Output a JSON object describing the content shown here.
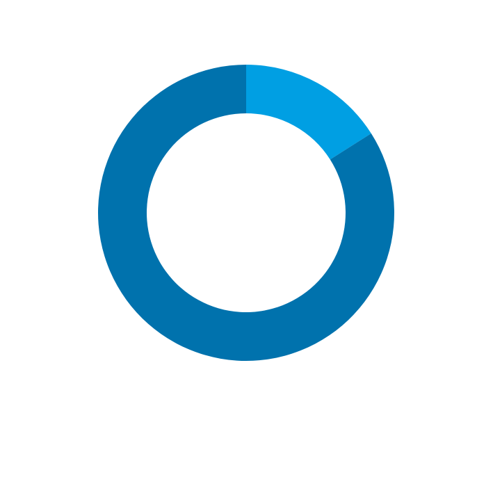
{
  "chart_data": {
    "type": "pie",
    "variant": "donut",
    "title": "",
    "legend": "none",
    "series": [
      {
        "value": 16,
        "color": "#009FE3"
      },
      {
        "value": 84,
        "color": "#0072AD"
      }
    ]
  }
}
